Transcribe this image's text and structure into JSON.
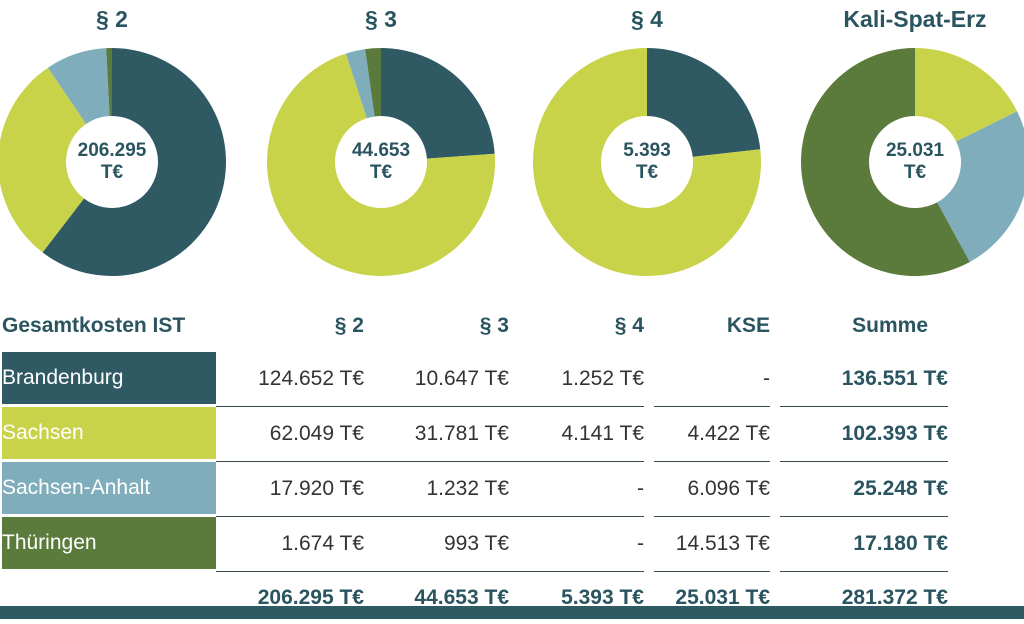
{
  "chart_data": [
    {
      "type": "pie",
      "title": "§ 2",
      "center_value": "206.295",
      "center_unit": "T€",
      "categories": [
        "Brandenburg",
        "Sachsen",
        "Sachsen-Anhalt",
        "Thüringen"
      ],
      "values": [
        124652,
        62049,
        17920,
        1674
      ]
    },
    {
      "type": "pie",
      "title": "§ 3",
      "center_value": "44.653",
      "center_unit": "T€",
      "categories": [
        "Brandenburg",
        "Sachsen",
        "Sachsen-Anhalt",
        "Thüringen"
      ],
      "values": [
        10647,
        31781,
        1232,
        993
      ]
    },
    {
      "type": "pie",
      "title": "§ 4",
      "center_value": "5.393",
      "center_unit": "T€",
      "categories": [
        "Brandenburg",
        "Sachsen",
        "Sachsen-Anhalt",
        "Thüringen"
      ],
      "values": [
        1252,
        4141,
        0,
        0
      ]
    },
    {
      "type": "pie",
      "title": "Kali-Spat-Erz",
      "center_value": "25.031",
      "center_unit": "T€",
      "categories": [
        "Brandenburg",
        "Sachsen",
        "Sachsen-Anhalt",
        "Thüringen"
      ],
      "values": [
        0,
        4422,
        6096,
        14513
      ]
    },
    {
      "type": "table",
      "header": [
        "Gesamtkosten IST",
        "§ 2",
        "§ 3",
        "§ 4",
        "KSE",
        "Summe"
      ],
      "rows": [
        {
          "region": "Brandenburg",
          "p2": "124.652 T€",
          "p3": "10.647 T€",
          "p4": "1.252 T€",
          "kse": "-",
          "sum": "136.551 T€"
        },
        {
          "region": "Sachsen",
          "p2": "62.049 T€",
          "p3": "31.781 T€",
          "p4": "4.141 T€",
          "kse": "4.422 T€",
          "sum": "102.393 T€"
        },
        {
          "region": "Sachsen-Anhalt",
          "p2": "17.920 T€",
          "p3": "1.232 T€",
          "p4": "-",
          "kse": "6.096 T€",
          "sum": "25.248 T€"
        },
        {
          "region": "Thüringen",
          "p2": "1.674 T€",
          "p3": "993 T€",
          "p4": "-",
          "kse": "14.513 T€",
          "sum": "17.180 T€"
        }
      ],
      "totals": {
        "p2": "206.295 T€",
        "p3": "44.653 T€",
        "p4": "5.393 T€",
        "kse": "25.031 T€",
        "sum": "281.372 T€"
      }
    }
  ],
  "colors": {
    "Brandenburg": "#2f5a64",
    "Sachsen": "#c8d34a",
    "Sachsen-Anhalt": "#7fadbb",
    "Thüringen": "#5b7b3c",
    "text": "#2a5560"
  }
}
